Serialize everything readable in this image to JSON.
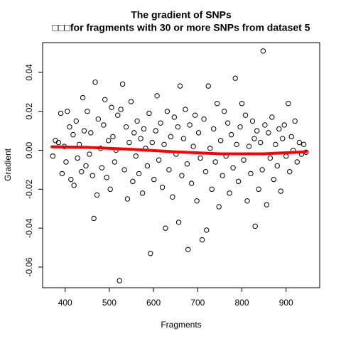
{
  "chart_data": {
    "type": "scatter",
    "title": "The gradient of SNPs",
    "subtitle": "□□□for fragments with 30 or more SNPs from dataset 5",
    "x_label": "Fragments",
    "y_label": "Gradient",
    "xlim": [
      349,
      976
    ],
    "ylim": [
      -0.0706,
      0.0553
    ],
    "xticks": [
      400,
      500,
      600,
      700,
      800,
      900
    ],
    "yticks": [
      -0.06,
      -0.04,
      -0.02,
      {
        "value": 0,
        "label": "0.00"
      },
      0.02,
      0.04
    ],
    "series": [
      {
        "kind": "points",
        "color": "#000000",
        "x": [
          372,
          378,
          385,
          390,
          393,
          398,
          402,
          405,
          410,
          413,
          418,
          420,
          425,
          428,
          432,
          437,
          440,
          443,
          447,
          450,
          455,
          458,
          462,
          465,
          468,
          472,
          475,
          480,
          483,
          487,
          490,
          494,
          498,
          502,
          505,
          508,
          512,
          515,
          519,
          523,
          526,
          530,
          534,
          538,
          541,
          545,
          549,
          553,
          556,
          560,
          563,
          567,
          571,
          575,
          578,
          582,
          586,
          590,
          593,
          597,
          601,
          605,
          608,
          612,
          616,
          620,
          624,
          627,
          631,
          635,
          639,
          643,
          647,
          651,
          655,
          657,
          660,
          664,
          668,
          672,
          676,
          678,
          682,
          686,
          690,
          694,
          698,
          702,
          706,
          710,
          714,
          718,
          720,
          724,
          728,
          732,
          736,
          740,
          744,
          748,
          752,
          756,
          760,
          764,
          768,
          772,
          776,
          780,
          785,
          788,
          792,
          796,
          800,
          804,
          808,
          812,
          816,
          820,
          824,
          828,
          830,
          834,
          838,
          842,
          846,
          848,
          852,
          856,
          860,
          864,
          868,
          872,
          876,
          880,
          884,
          888,
          892,
          896,
          900,
          905,
          908,
          912,
          916,
          920,
          925,
          930,
          935,
          940,
          945
        ],
        "values": [
          -0.003,
          0.005,
          0.004,
          0.019,
          -0.012,
          0.002,
          -0.006,
          0.02,
          0.012,
          -0.015,
          0.008,
          -0.018,
          0.015,
          -0.004,
          0.003,
          -0.011,
          0.027,
          0.01,
          -0.008,
          0.02,
          -0.002,
          0.009,
          -0.013,
          -0.035,
          0.035,
          -0.023,
          0.016,
          0.001,
          -0.009,
          0.013,
          0.026,
          -0.014,
          0.005,
          -0.02,
          0.022,
          0.007,
          -0.006,
          0.0,
          0.018,
          -0.067,
          0.021,
          0.034,
          -0.01,
          0.012,
          -0.025,
          0.004,
          0.025,
          -0.016,
          0.009,
          -0.003,
          0.015,
          -0.012,
          0.006,
          -0.022,
          0.011,
          0.001,
          -0.008,
          0.019,
          -0.053,
          0.004,
          -0.015,
          0.01,
          0.028,
          -0.005,
          0.014,
          -0.019,
          0.003,
          -0.04,
          0.02,
          -0.01,
          0.007,
          -0.024,
          0.017,
          -0.002,
          0.012,
          -0.037,
          0.033,
          -0.013,
          0.006,
          0.021,
          -0.007,
          -0.051,
          0.013,
          -0.017,
          0.002,
          0.018,
          -0.026,
          0.009,
          -0.004,
          -0.046,
          0.016,
          -0.011,
          -0.041,
          0.033,
          0.001,
          -0.02,
          0.011,
          -0.006,
          0.024,
          -0.029,
          0.005,
          -0.013,
          0.02,
          -0.003,
          0.014,
          -0.022,
          0.008,
          -0.009,
          0.037,
          0.003,
          -0.016,
          0.012,
          0.024,
          -0.005,
          0.018,
          -0.026,
          0.002,
          -0.012,
          0.015,
          0.006,
          -0.039,
          0.01,
          -0.02,
          0.004,
          -0.01,
          0.051,
          0.013,
          -0.028,
          0.009,
          -0.004,
          0.017,
          -0.015,
          0.003,
          -0.008,
          0.011,
          -0.021,
          0.006,
          0.013,
          -0.003,
          0.024,
          -0.011,
          0.007,
          0.0,
          0.015,
          -0.006,
          0.004,
          -0.002,
          0.003,
          -0.001
        ]
      },
      {
        "kind": "line",
        "color": "#ff0000",
        "x": [
          370,
          450,
          550,
          650,
          750,
          850,
          945
        ],
        "values": [
          0.0018,
          0.0015,
          0.0005,
          -0.0008,
          -0.0018,
          -0.0018,
          -0.0008
        ]
      }
    ]
  }
}
